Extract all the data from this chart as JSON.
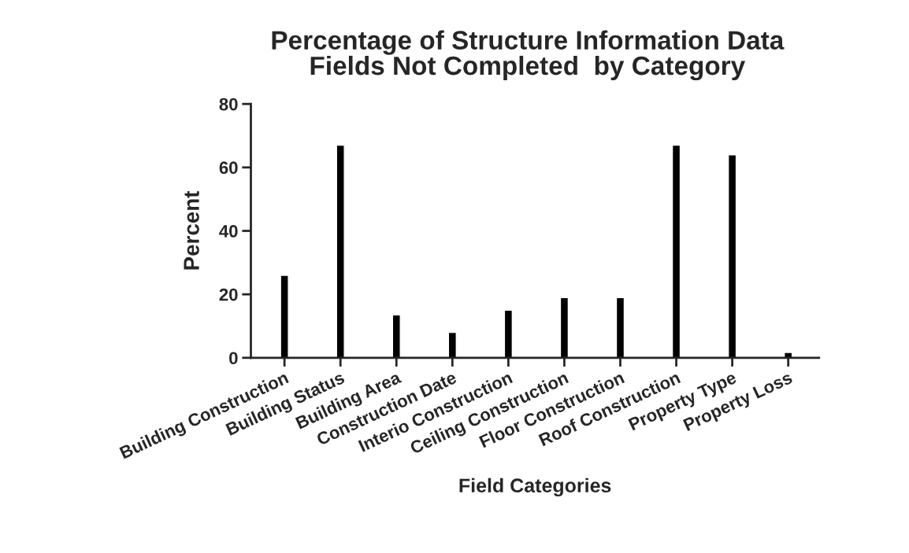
{
  "chart_data": {
    "type": "bar",
    "title": "Percentage of Structure Information Data\nFields Not Completed  by Category",
    "xlabel": "Field Categories",
    "ylabel": "Percent",
    "categories": [
      "Building Construction",
      "Building Status",
      "Building Area",
      "Construction Date",
      "Interio Construction",
      "Ceiling Construction",
      "Floor Construction",
      "Roof Construction",
      "Property Type",
      "Property Loss"
    ],
    "values": [
      26,
      67,
      13.5,
      8,
      15,
      19,
      19,
      67,
      64,
      1.7
    ],
    "color": "#000000",
    "ylim": [
      0,
      80
    ],
    "yticks": [
      0,
      20,
      40,
      60,
      80
    ],
    "grid": false,
    "legend": false
  }
}
